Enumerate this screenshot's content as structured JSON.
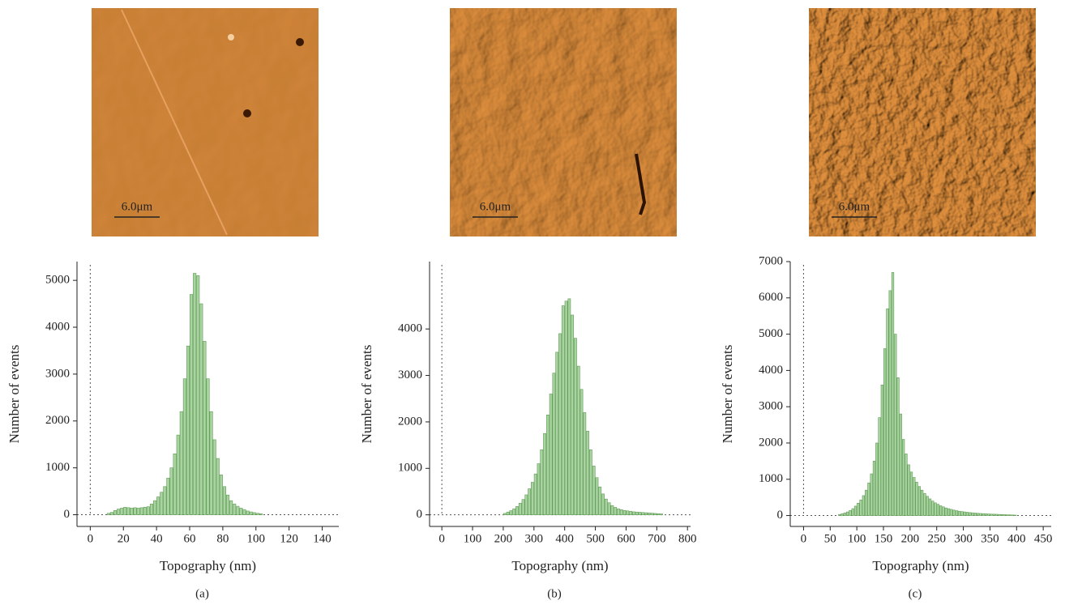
{
  "chart_data": [
    {
      "type": "histogram",
      "scale_bar": "6.0μm",
      "xlabel": "Topography (nm)",
      "ylabel": "Number of events",
      "panel_label": "(a)",
      "bins": [
        10,
        12,
        14,
        16,
        18,
        20,
        22,
        24,
        26,
        28,
        30,
        32,
        34,
        36,
        38,
        40,
        42,
        44,
        46,
        48,
        50,
        52,
        54,
        56,
        58,
        60,
        62,
        64,
        66,
        68,
        70,
        72,
        74,
        76,
        78,
        80,
        82,
        84,
        86,
        88,
        90,
        92,
        94,
        96,
        98,
        100,
        102,
        104
      ],
      "counts": [
        30,
        50,
        90,
        120,
        140,
        160,
        150,
        140,
        150,
        140,
        150,
        160,
        170,
        230,
        300,
        380,
        480,
        600,
        780,
        1000,
        1300,
        1700,
        2200,
        2900,
        3600,
        4700,
        5150,
        5100,
        4500,
        3700,
        2900,
        2200,
        1600,
        1200,
        850,
        600,
        420,
        300,
        230,
        180,
        140,
        110,
        80,
        60,
        45,
        30,
        20
      ],
      "xlim": [
        -8,
        150
      ],
      "ylim": [
        -250,
        5400
      ],
      "xticks": [
        0,
        20,
        40,
        60,
        80,
        100,
        120,
        140
      ],
      "yticks": [
        0,
        1000,
        2000,
        3000,
        4000,
        5000
      ],
      "color": "#a9d3a0"
    },
    {
      "type": "histogram",
      "scale_bar": "6.0μm",
      "xlabel": "Topography (nm)",
      "ylabel": "Number of events",
      "panel_label": "(b)",
      "bins": [
        200,
        210,
        220,
        230,
        240,
        250,
        260,
        270,
        280,
        290,
        300,
        310,
        320,
        330,
        340,
        350,
        360,
        370,
        380,
        390,
        400,
        410,
        420,
        430,
        440,
        450,
        460,
        470,
        480,
        490,
        500,
        510,
        520,
        530,
        540,
        550,
        560,
        570,
        580,
        590,
        600,
        610,
        620,
        630,
        640,
        650,
        660,
        670,
        680,
        690,
        700,
        710,
        720
      ],
      "counts": [
        30,
        60,
        90,
        130,
        180,
        250,
        330,
        430,
        560,
        700,
        880,
        1100,
        1400,
        1750,
        2150,
        2600,
        3050,
        3500,
        3900,
        4500,
        4600,
        4650,
        4300,
        3800,
        3200,
        2700,
        2200,
        1800,
        1400,
        1050,
        800,
        600,
        450,
        340,
        260,
        200,
        160,
        130,
        110,
        95,
        85,
        75,
        65,
        60,
        55,
        50,
        45,
        40,
        35,
        30,
        25,
        20
      ],
      "xlim": [
        -40,
        810
      ],
      "ylim": [
        -250,
        5450
      ],
      "xticks": [
        0,
        100,
        200,
        300,
        400,
        500,
        600,
        700,
        800
      ],
      "yticks": [
        0,
        1000,
        2000,
        3000,
        4000
      ],
      "color": "#a9d3a0"
    },
    {
      "type": "histogram",
      "scale_bar": "6.0μm",
      "xlabel": "Topography (nm)",
      "ylabel": "Number of events",
      "panel_label": "(c)",
      "bins": [
        65,
        70,
        75,
        80,
        85,
        90,
        95,
        100,
        105,
        110,
        115,
        120,
        125,
        130,
        135,
        140,
        145,
        150,
        155,
        160,
        165,
        170,
        175,
        180,
        185,
        190,
        195,
        200,
        205,
        210,
        215,
        220,
        225,
        230,
        235,
        240,
        245,
        250,
        255,
        260,
        265,
        270,
        275,
        280,
        285,
        290,
        295,
        300,
        305,
        310,
        315,
        320,
        325,
        330,
        335,
        340,
        345,
        350,
        355,
        360,
        365,
        370,
        375,
        380,
        385,
        390,
        395,
        400
      ],
      "counts": [
        30,
        50,
        70,
        100,
        140,
        190,
        260,
        340,
        430,
        550,
        700,
        900,
        1150,
        1500,
        2000,
        2700,
        3600,
        4600,
        5700,
        6200,
        6700,
        5000,
        3800,
        2800,
        2100,
        1700,
        1400,
        1200,
        1050,
        920,
        800,
        700,
        610,
        530,
        460,
        400,
        350,
        310,
        270,
        240,
        210,
        190,
        170,
        150,
        135,
        120,
        110,
        100,
        90,
        82,
        75,
        68,
        62,
        57,
        52,
        48,
        44,
        40,
        37,
        34,
        31,
        28,
        25,
        22,
        19,
        16,
        13
      ],
      "xlim": [
        -25,
        465
      ],
      "ylim": [
        -300,
        7000
      ],
      "xticks": [
        0,
        50,
        100,
        150,
        200,
        250,
        300,
        350,
        400,
        450
      ],
      "yticks": [
        0,
        1000,
        2000,
        3000,
        4000,
        5000,
        6000,
        7000
      ],
      "color": "#a9d3a0"
    }
  ]
}
